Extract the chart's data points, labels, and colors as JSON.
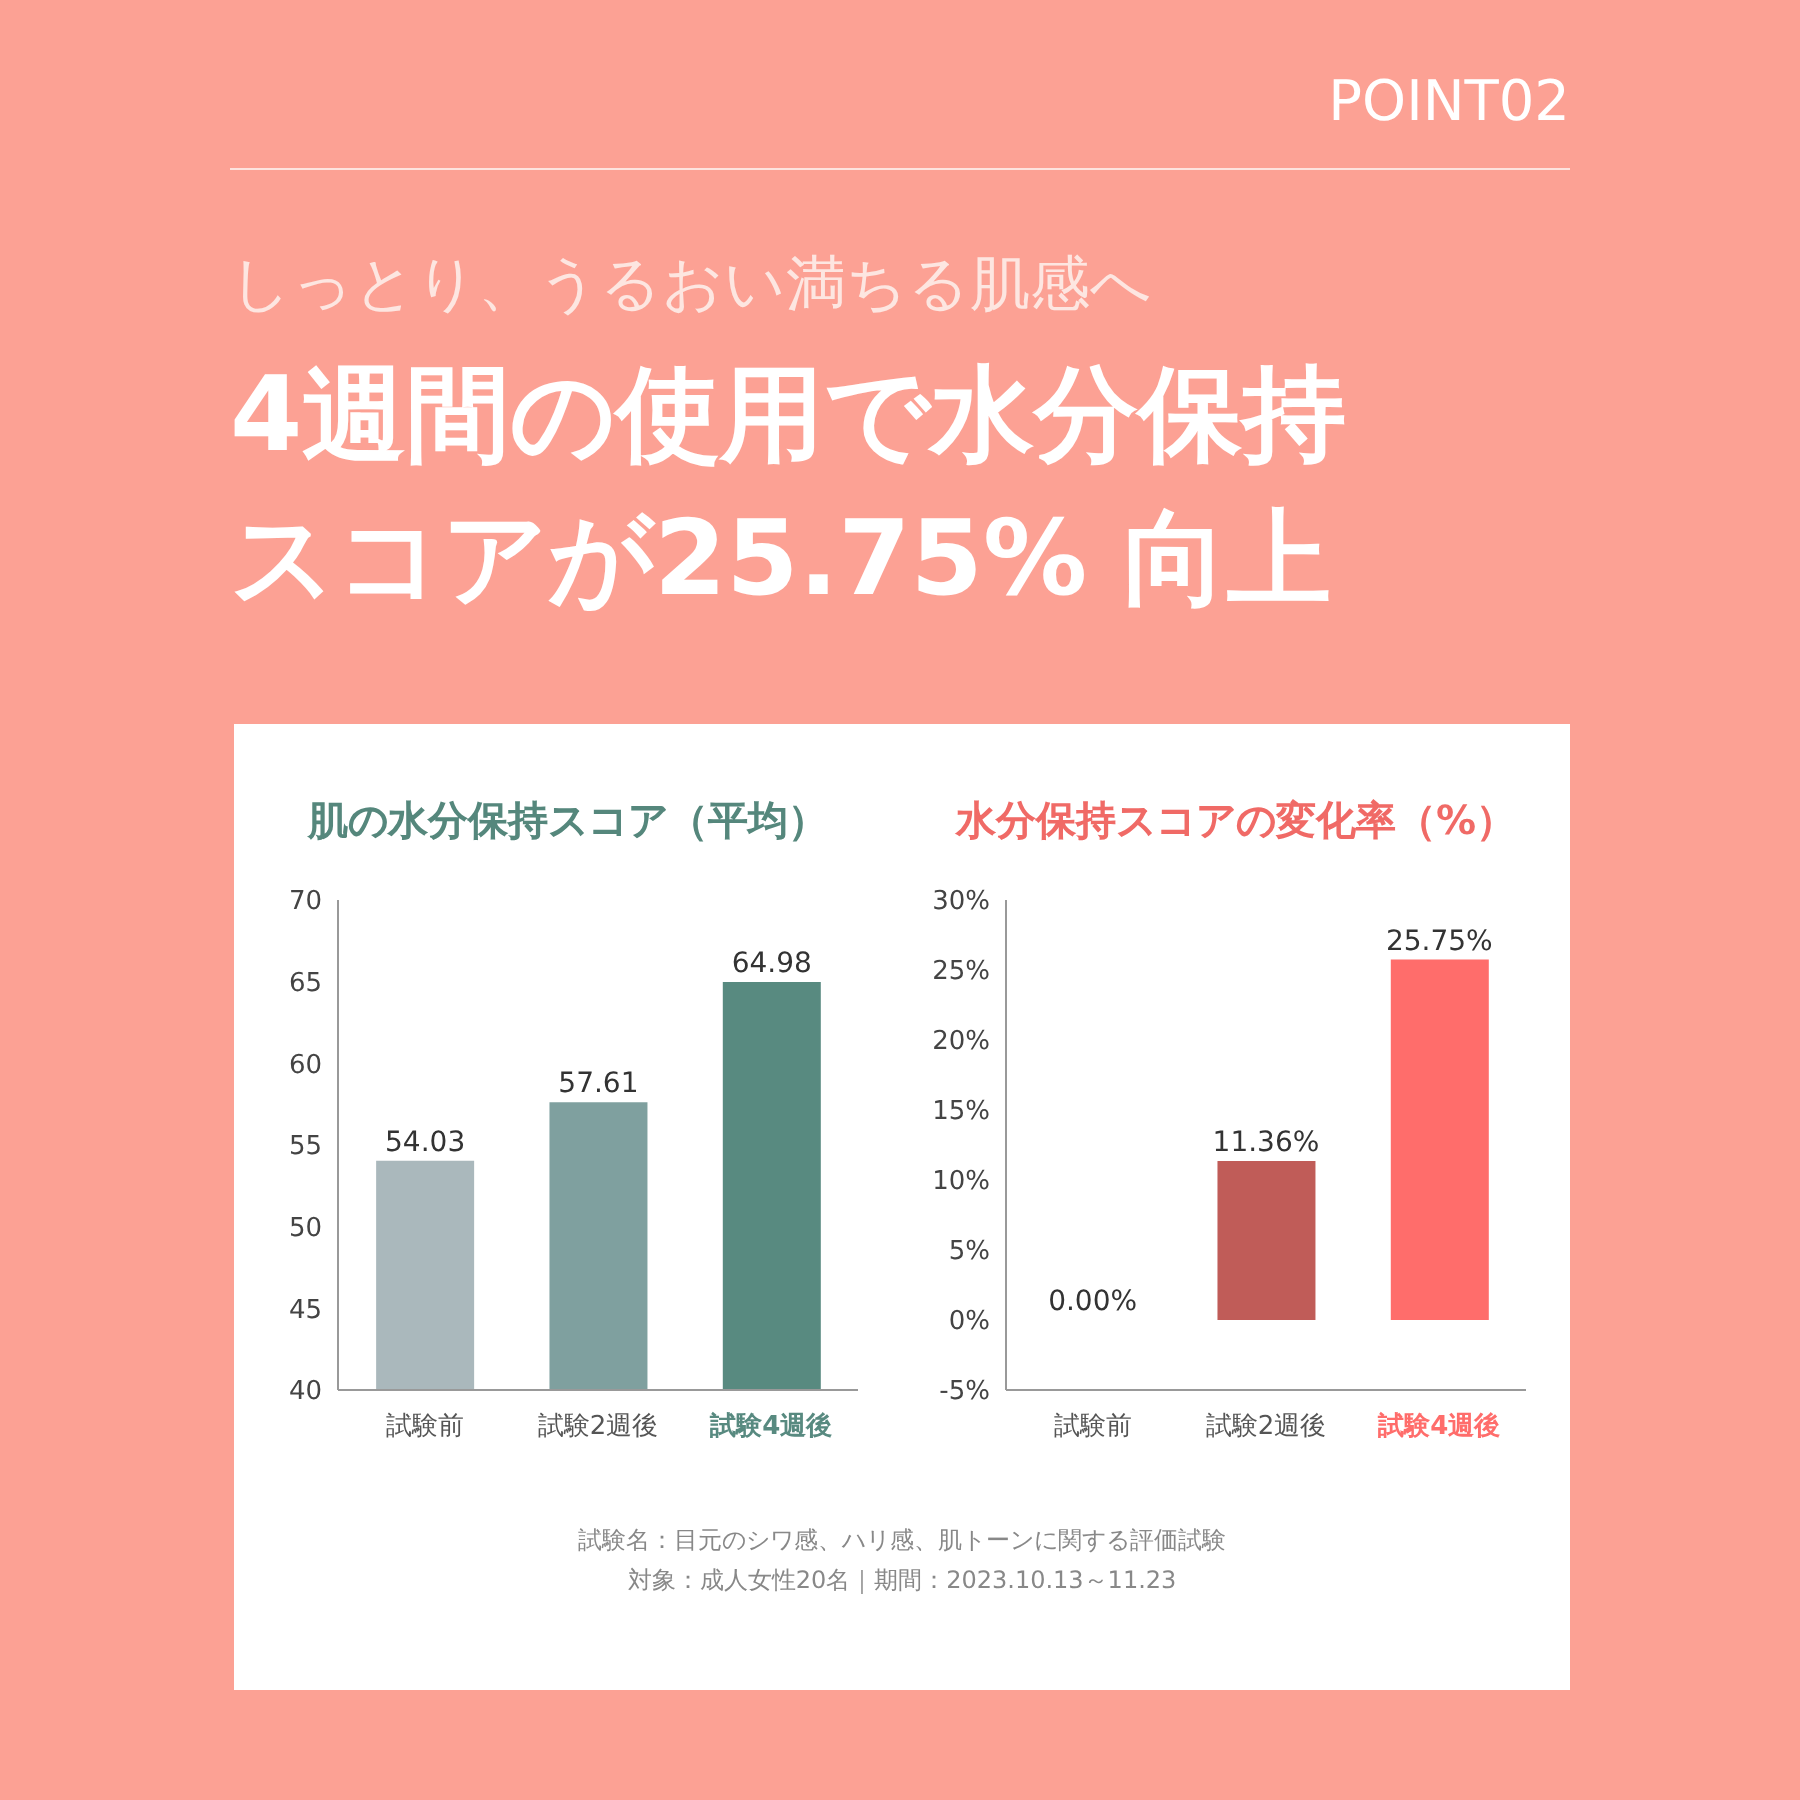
{
  "chart_data": [
    {
      "type": "other",
      "title": "4週間の使用で水分保持スコアが25.75% 向上",
      "subtitle": "しっとり、うるおい満ちる肌感へ",
      "annotations": [
        "POINT02",
        "試験名：目元のシワ感、ハリ感、肌トーンに関する評価試験",
        "対象：成人女性20名｜期間：2023.10.13～11.23"
      ]
    },
    {
      "type": "bar",
      "title": "肌の水分保持スコア（平均）",
      "categories": [
        "試験前",
        "試験2週後",
        "試験4週後"
      ],
      "values": [
        54.03,
        57.61,
        64.98
      ],
      "colors": [
        "#aab8bc",
        "#7fa09f",
        "#588a80"
      ],
      "ylim": [
        40,
        70
      ],
      "yticks": [
        40,
        45,
        50,
        55,
        60,
        65,
        70
      ],
      "data_labels": true,
      "grid": false
    },
    {
      "type": "bar",
      "title": "水分保持スコアの変化率（%）",
      "categories": [
        "試験前",
        "試験2週後",
        "試験4週後"
      ],
      "values": [
        0,
        11.36,
        25.75
      ],
      "value_labels": [
        "0.00%",
        "11.36%",
        "25.75%"
      ],
      "colors": [
        "#7b4640",
        "#c05c58",
        "#ff6d6b"
      ],
      "ylim": [
        -5,
        30
      ],
      "yticks": [
        {
          "value": -5,
          "label": "-5%"
        },
        {
          "value": 0,
          "label": "0%"
        },
        {
          "value": 5,
          "label": "5%"
        },
        {
          "value": 10,
          "label": "10%"
        },
        {
          "value": 15,
          "label": "15%"
        },
        {
          "value": 20,
          "label": "20%"
        },
        {
          "value": 25,
          "label": "25%"
        },
        {
          "value": 30,
          "label": "30%"
        }
      ],
      "grid": false
    }
  ]
}
